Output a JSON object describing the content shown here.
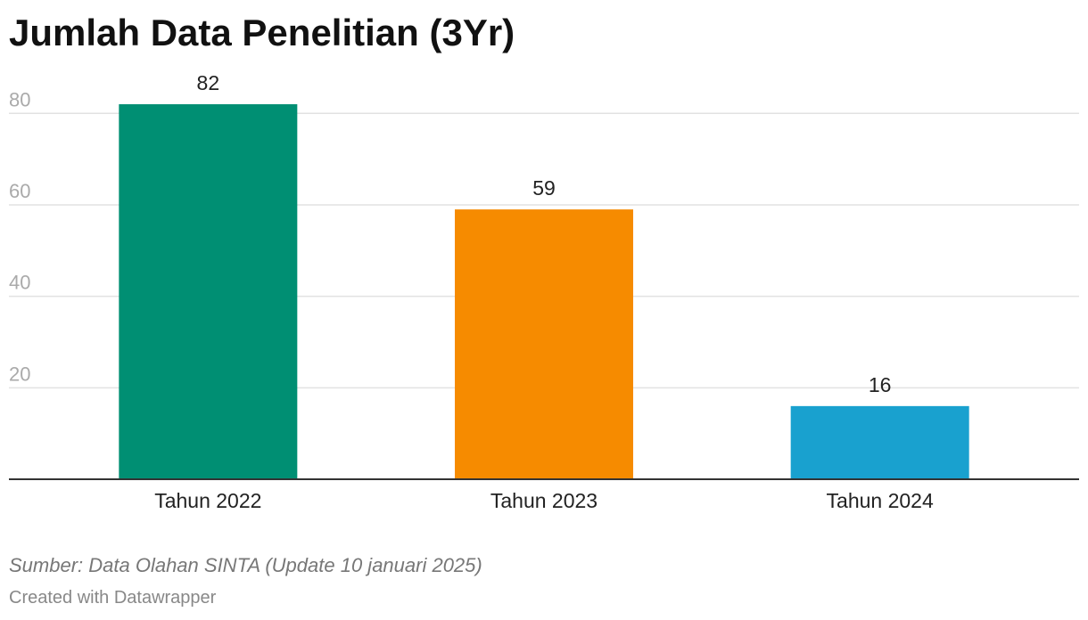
{
  "chart_data": {
    "type": "bar",
    "title": "Jumlah Data Penelitian (3Yr)",
    "categories": [
      "Tahun 2022",
      "Tahun 2023",
      "Tahun 2024"
    ],
    "values": [
      82,
      59,
      16
    ],
    "colors": [
      "#008f73",
      "#f68b00",
      "#19a1cf"
    ],
    "yticks": [
      20,
      40,
      60,
      80
    ],
    "ylim": [
      0,
      90
    ],
    "grid": true,
    "legend": "none",
    "xlabel": "",
    "ylabel": ""
  },
  "footer": {
    "source": "Sumber: Data Olahan SINTA (Update 10 januari 2025)",
    "credit": "Created with Datawrapper"
  }
}
